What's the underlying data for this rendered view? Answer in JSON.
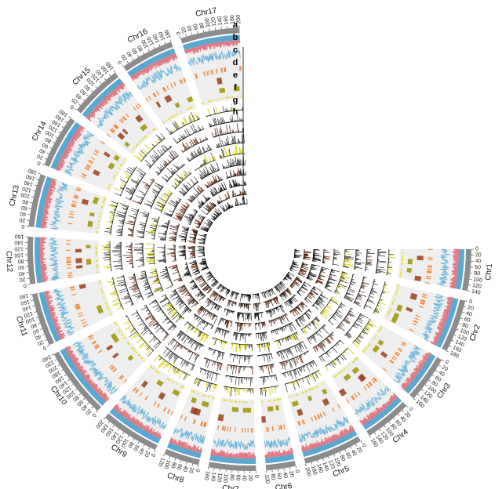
{
  "figure": {
    "track_letters": [
      "a",
      "b",
      "c",
      "d",
      "e",
      "f",
      "g",
      "h"
    ],
    "colors": {
      "ideogram": "#8c8c8c",
      "track_blue": "#5aa7cf",
      "track_pink": "#e07a85",
      "line_blue": "#6fb6dc",
      "background_track": "#eeeeee",
      "orange_marks": "#f08a3c",
      "brown_marks": "#9a3d1a",
      "olive_marks": "#a8a226",
      "yellow_dots": "#e3dc2a",
      "histogram_yellow": "#d8d21a",
      "histogram_brown": "#7a3a1e",
      "histogram_black": "#111111"
    }
  },
  "chart_data": {
    "type": "circos",
    "chromosomes": [
      {
        "name": "Chr1",
        "length": 140,
        "tick_labels": [
          "0",
          "20",
          "40",
          "60",
          "80",
          "100",
          "120",
          "140"
        ]
      },
      {
        "name": "Chr2",
        "length": 180,
        "tick_labels": [
          "0",
          "20",
          "40",
          "60",
          "80",
          "100",
          "120",
          "140",
          "160",
          "180"
        ]
      },
      {
        "name": "Chr3",
        "length": 160,
        "tick_labels": [
          "0",
          "20",
          "40",
          "60",
          "80",
          "100",
          "120",
          "140",
          "160"
        ]
      },
      {
        "name": "Chr4",
        "length": 160,
        "tick_labels": [
          "0",
          "20",
          "40",
          "60",
          "80",
          "100",
          "120",
          "140",
          "160"
        ]
      },
      {
        "name": "Chr5",
        "length": 200,
        "tick_labels": [
          "0",
          "20",
          "40",
          "60",
          "80",
          "100",
          "120",
          "140",
          "160",
          "180",
          "200"
        ]
      },
      {
        "name": "Chr6",
        "length": 100,
        "tick_labels": [
          "0",
          "20",
          "40",
          "60",
          "80",
          "100"
        ]
      },
      {
        "name": "Chr7",
        "length": 160,
        "tick_labels": [
          "0",
          "20",
          "40",
          "60",
          "80",
          "100",
          "120",
          "140",
          "160"
        ]
      },
      {
        "name": "Chr8",
        "length": 120,
        "tick_labels": [
          "0",
          "20",
          "40",
          "60",
          "80",
          "100",
          "120"
        ]
      },
      {
        "name": "Chr9",
        "length": 200,
        "tick_labels": [
          "0",
          "20",
          "40",
          "60",
          "80",
          "100",
          "120",
          "140",
          "160",
          "180",
          "200"
        ]
      },
      {
        "name": "Chr10",
        "length": 240,
        "tick_labels": [
          "0",
          "20",
          "40",
          "60",
          "80",
          "100",
          "120",
          "140",
          "160",
          "180",
          "200",
          "220",
          "240"
        ]
      },
      {
        "name": "Chr11",
        "length": 180,
        "tick_labels": [
          "0",
          "20",
          "40",
          "60",
          "80",
          "100",
          "120",
          "140",
          "160",
          "180"
        ]
      },
      {
        "name": "Chr12",
        "length": 160,
        "tick_labels": [
          "0",
          "20",
          "40",
          "60",
          "80",
          "100",
          "120",
          "140",
          "160"
        ]
      },
      {
        "name": "Chr13",
        "length": 180,
        "tick_labels": [
          "0",
          "20",
          "40",
          "60",
          "80",
          "100",
          "120",
          "140",
          "160",
          "180"
        ]
      },
      {
        "name": "Chr14",
        "length": 180,
        "tick_labels": [
          "0",
          "20",
          "40",
          "60",
          "80",
          "100",
          "120",
          "140",
          "160",
          "180"
        ]
      },
      {
        "name": "Chr15",
        "length": 180,
        "tick_labels": [
          "0",
          "20",
          "40",
          "60",
          "80",
          "100",
          "120",
          "140",
          "160",
          "180"
        ]
      },
      {
        "name": "Chr16",
        "length": 180,
        "tick_labels": [
          "0",
          "20",
          "40",
          "60",
          "80",
          "100",
          "120",
          "140",
          "160",
          "180"
        ]
      },
      {
        "name": "Chr17",
        "length": 200,
        "tick_labels": [
          "0",
          "20",
          "40",
          "60",
          "80",
          "100",
          "120",
          "140",
          "160",
          "180",
          "200"
        ]
      }
    ]
  }
}
